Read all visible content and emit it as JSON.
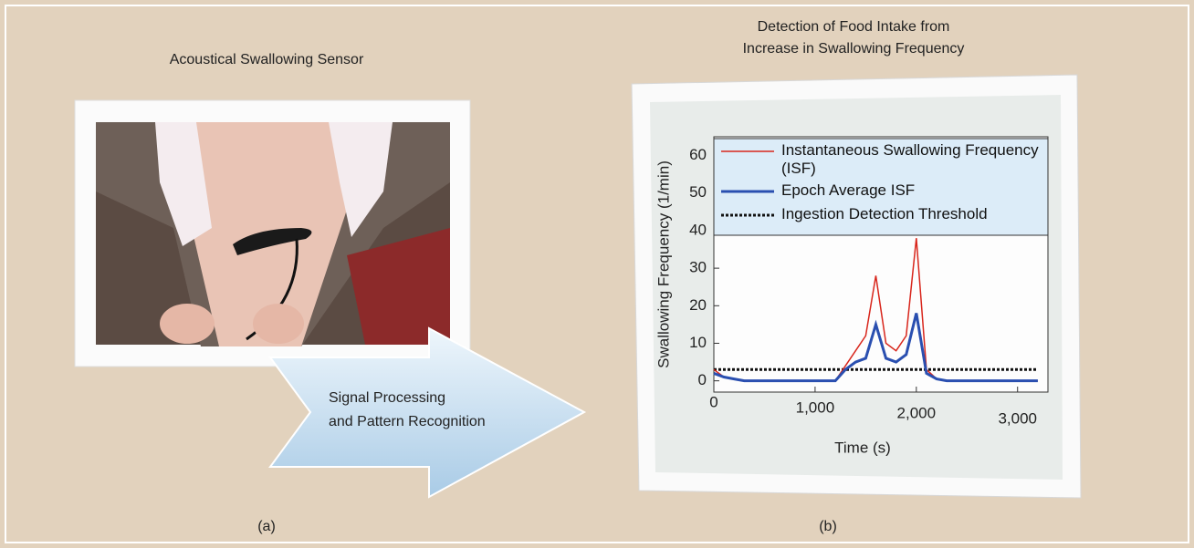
{
  "panel_a": {
    "title": "Acoustical Swallowing Sensor",
    "label": "(a)"
  },
  "arrow": {
    "lines": [
      "Signal Processing",
      "and Pattern Recognition"
    ]
  },
  "panel_b": {
    "title": [
      "Detection of Food Intake from",
      "Increase in Swallowing Frequency"
    ],
    "label": "(b)"
  },
  "chart_data": {
    "type": "line",
    "xlabel": "Time (s)",
    "ylabel": "Swallowing Frequency (1/min)",
    "x": [
      0,
      100,
      200,
      300,
      400,
      500,
      600,
      700,
      800,
      900,
      1000,
      1100,
      1200,
      1300,
      1400,
      1500,
      1600,
      1700,
      1800,
      1900,
      2000,
      2100,
      2200,
      2300,
      2400,
      2500,
      2600,
      2700,
      2800,
      2900,
      3000,
      3100,
      3200
    ],
    "series": [
      {
        "name": "Instantaneous Swallowing Frequency (ISF)",
        "color": "#d8261c",
        "width": 1.5,
        "dashed": false,
        "values": [
          3,
          1,
          0.5,
          0,
          0,
          0,
          0,
          0,
          0,
          0,
          0,
          0,
          0,
          4,
          8,
          12,
          28,
          10,
          8,
          12,
          38,
          3,
          0.5,
          0,
          0,
          0,
          0,
          0,
          0,
          0,
          0,
          0,
          0
        ]
      },
      {
        "name": "Epoch Average ISF",
        "color": "#2a4fb0",
        "width": 3,
        "dashed": false,
        "values": [
          2,
          1,
          0.5,
          0,
          0,
          0,
          0,
          0,
          0,
          0,
          0,
          0,
          0,
          3,
          5,
          6,
          15,
          6,
          5,
          7,
          18,
          2,
          0.5,
          0,
          0,
          0,
          0,
          0,
          0,
          0,
          0,
          0,
          0
        ]
      },
      {
        "name": "Ingestion Detection Threshold",
        "color": "#111111",
        "width": 3,
        "dashed": true,
        "values": [
          3,
          3,
          3,
          3,
          3,
          3,
          3,
          3,
          3,
          3,
          3,
          3,
          3,
          3,
          3,
          3,
          3,
          3,
          3,
          3,
          3,
          3,
          3,
          3,
          3,
          3,
          3,
          3,
          3,
          3,
          3,
          3,
          3
        ]
      }
    ],
    "xlim": [
      0,
      3300
    ],
    "ylim": [
      -3,
      65
    ],
    "xticks": [
      0,
      {
        "value": 1000,
        "label": "1,000"
      },
      {
        "value": 2000,
        "label": "2,000"
      },
      {
        "value": 3000,
        "label": "3,000"
      }
    ],
    "yticks": [
      0,
      10,
      20,
      30,
      40,
      50,
      60
    ],
    "legend": "upper-right"
  }
}
